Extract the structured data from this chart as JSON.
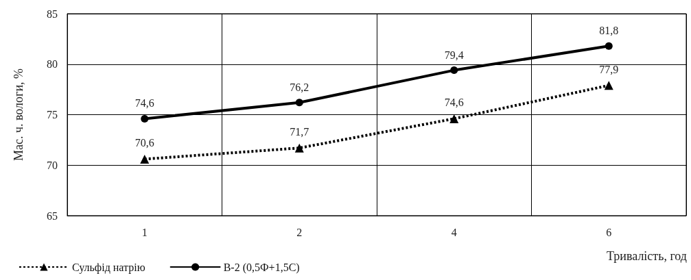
{
  "chart_data": {
    "type": "line",
    "ylabel": "Мас. ч. вологи, %",
    "xlabel": "Тривалість, год",
    "categories": [
      "1",
      "2",
      "4",
      "6"
    ],
    "series": [
      {
        "name": "Сульфід натрію",
        "color": "#000000",
        "values": [
          70.6,
          71.7,
          74.6,
          77.9
        ],
        "value_labels": [
          "70,6",
          "71,7",
          "74,6",
          "77,9"
        ],
        "marker": "triangle",
        "line_style": "dotted"
      },
      {
        "name": "B-2 (0,5Ф+1,5С)",
        "color": "#000000",
        "values": [
          74.6,
          76.2,
          79.4,
          81.8
        ],
        "value_labels": [
          "74,6",
          "76,2",
          "79,4",
          "81,8"
        ],
        "marker": "circle",
        "line_style": "solid"
      }
    ],
    "ylim": [
      65,
      85
    ],
    "yticks": [
      65,
      70,
      75,
      80,
      85
    ],
    "grid": true,
    "legend": "bottom left"
  }
}
